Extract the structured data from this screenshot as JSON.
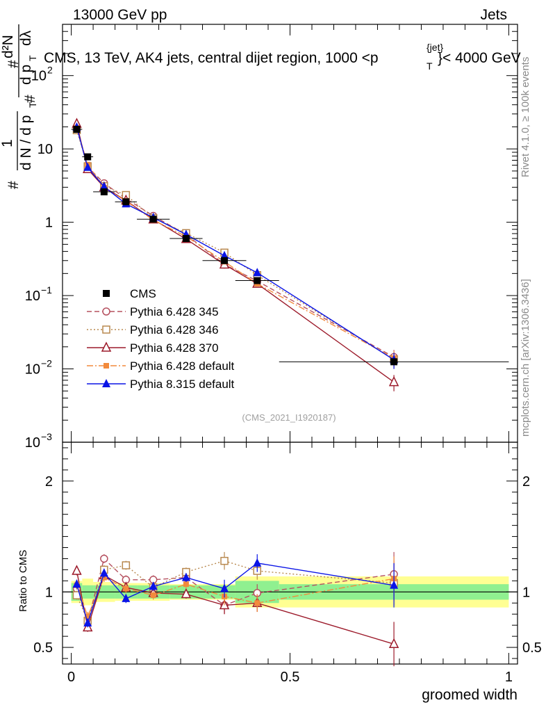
{
  "header": {
    "left": "13000 GeV pp",
    "right": "Jets",
    "title": "CMS, 13 TeV, AK4 jets, central dijet region, 1000 <p",
    "title_super": "{jet}",
    "title_sub": "T",
    "title_end": "}< 4000 GeV"
  },
  "side_labels": {
    "rivet": "Rivet 4.1.0, ≥ 100k events",
    "mcplots": "mcplots.cern.ch [arXiv:1306.3436]"
  },
  "watermark": "(CMS_2021_I1920187)",
  "ylabel": {
    "num_hash": "#",
    "num_one": "1",
    "den": "d N / d p",
    "den_sub": "T",
    "rhs_hash_top": "#",
    "rhs_top": "d²N",
    "rhs_hash_bot": "#",
    "rhs_bot": "d p",
    "rhs_bot_sub": "T",
    "rhs_bot_end": "dλ"
  },
  "ratio_ylabel": "Ratio to CMS",
  "xlabel": "groomed width",
  "chart_data": [
    {
      "type": "scatter",
      "name": "main",
      "yscale": "log",
      "xlim": [
        -0.02,
        1.02
      ],
      "ylim": [
        0.001,
        500
      ],
      "x_ticks": [
        "0",
        "0.5",
        "1"
      ],
      "y_ticks": [
        {
          "value": 0.001,
          "base": "10",
          "exp": "−3"
        },
        {
          "value": 0.01,
          "base": "10",
          "exp": "−2"
        },
        {
          "value": 0.1,
          "base": "10",
          "exp": "−1"
        },
        {
          "value": 1,
          "base": "1",
          "exp": ""
        },
        {
          "value": 10,
          "base": "10",
          "exp": ""
        },
        {
          "value": 100,
          "base": "10",
          "exp": "2"
        }
      ],
      "data": {
        "name": "CMS",
        "x": [
          0.0125,
          0.0375,
          0.075,
          0.125,
          0.1875,
          0.2625,
          0.35,
          0.425,
          0.7375
        ],
        "xerr": [
          0.0125,
          0.0125,
          0.025,
          0.025,
          0.0375,
          0.0375,
          0.05,
          0.05,
          0.2625
        ],
        "y": [
          18.5,
          7.8,
          2.6,
          1.9,
          1.1,
          0.6,
          0.3,
          0.16,
          0.0125
        ]
      },
      "series": [
        {
          "name": "Pythia 6.428 345",
          "color": "#b5505f",
          "marker": "open-circle",
          "dash": "7,4",
          "y": [
            19.0,
            5.7,
            3.4,
            2.1,
            1.22,
            0.68,
            0.265,
            0.158,
            0.0145
          ]
        },
        {
          "name": "Pythia 6.428 346",
          "color": "#b8884e",
          "marker": "open-square",
          "dash": "2,3",
          "y": [
            18.0,
            5.8,
            3.1,
            2.35,
            1.14,
            0.71,
            0.385,
            0.19,
            0.0135
          ]
        },
        {
          "name": "Pythia 6.428 370",
          "color": "#9c1a2a",
          "marker": "open-triangle",
          "dash": "",
          "y": [
            22.0,
            5.3,
            3.0,
            1.98,
            1.09,
            0.59,
            0.265,
            0.145,
            0.0066
          ]
        },
        {
          "name": "Pythia 6.428 default",
          "color": "#f28a3c",
          "marker": "filled-square",
          "dash": "9,3,2,3",
          "y": [
            19.5,
            6.1,
            2.95,
            1.95,
            1.07,
            0.64,
            0.29,
            0.145,
            0.014
          ]
        },
        {
          "name": "Pythia 8.315 default",
          "color": "#0a14e6",
          "marker": "filled-triangle",
          "dash": "",
          "y": [
            19.8,
            5.6,
            3.05,
            1.78,
            1.16,
            0.68,
            0.35,
            0.205,
            0.0133
          ]
        }
      ]
    },
    {
      "type": "scatter",
      "name": "ratio",
      "xlim": [
        -0.02,
        1.02
      ],
      "ylim": [
        0.35,
        2.35
      ],
      "y_ticks": [
        "0.5",
        "1",
        "2"
      ],
      "band_inner": [
        0.08,
        0.06,
        0.06,
        0.06,
        0.06,
        0.06,
        0.06,
        0.1,
        0.07
      ],
      "band_outer": [
        0.1,
        0.12,
        0.09,
        0.08,
        0.08,
        0.07,
        0.07,
        0.14,
        0.14
      ],
      "series": [
        {
          "name": "Pythia 6.428 345",
          "y": [
            1.03,
            0.73,
            1.3,
            1.11,
            1.11,
            1.13,
            0.88,
            0.99,
            1.16
          ]
        },
        {
          "name": "Pythia 6.428 346",
          "y": [
            0.97,
            0.74,
            1.2,
            1.24,
            1.04,
            1.18,
            1.28,
            1.19,
            1.08
          ]
        },
        {
          "name": "Pythia 6.428 370",
          "y": [
            1.19,
            0.68,
            1.15,
            1.04,
            0.99,
            0.98,
            0.88,
            0.9,
            0.53
          ]
        },
        {
          "name": "Pythia 6.428 default",
          "y": [
            1.06,
            0.78,
            1.13,
            1.03,
            0.97,
            1.07,
            0.96,
            0.9,
            1.12
          ]
        },
        {
          "name": "Pythia 8.315 default",
          "y": [
            1.07,
            0.72,
            1.17,
            0.94,
            1.05,
            1.13,
            1.03,
            1.26,
            1.06
          ]
        }
      ]
    }
  ]
}
